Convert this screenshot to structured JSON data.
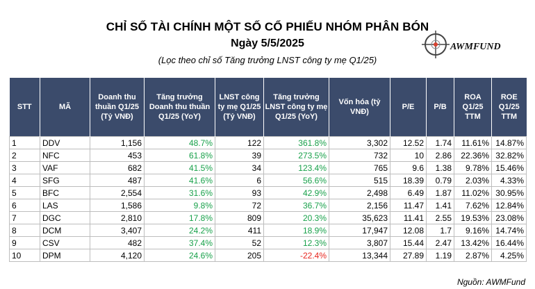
{
  "title": "CHỈ SỐ TÀI CHÍNH MỘT SỐ CỔ PHIẾU NHÓM PHÂN BÓN",
  "date": "Ngày 5/5/2025",
  "note": "(Lọc theo chỉ số Tăng trưởng LNST công ty mẹ Q1/25)",
  "logo": {
    "text": "AWMFUND",
    "icon": "crosshair-icon",
    "accent": "#d8412f"
  },
  "colors": {
    "header_bg": "#3b4b6b",
    "positive": "#18a14a",
    "negative": "#e8261f"
  },
  "table": {
    "headers": [
      "STT",
      "MÃ",
      "Doanh thu thuần Q1/25 (Tỷ VNĐ)",
      "Tăng trưởng Doanh thu thuần Q1/25 (YoY)",
      "LNST công ty mẹ Q1/25 (Tỷ VNĐ)",
      "Tăng trưởng LNST công ty mẹ Q1/25 (YoY)",
      "Vốn hóa (tỷ VNĐ)",
      "P/E",
      "P/B",
      "ROA Q1/25 TTM",
      "ROE Q1/25 TTM"
    ],
    "rows": [
      [
        "1",
        "DDV",
        "1,156",
        "48.7%",
        "122",
        "361.8%",
        "3,302",
        "12.52",
        "1.74",
        "11.61%",
        "14.87%"
      ],
      [
        "2",
        "NFC",
        "453",
        "61.8%",
        "39",
        "273.5%",
        "732",
        "10",
        "2.86",
        "22.36%",
        "32.82%"
      ],
      [
        "3",
        "VAF",
        "682",
        "41.5%",
        "34",
        "123.4%",
        "765",
        "9.6",
        "1.38",
        "9.78%",
        "15.46%"
      ],
      [
        "4",
        "SFG",
        "487",
        "41.6%",
        "6",
        "56.6%",
        "515",
        "18.39",
        "0.79",
        "2.03%",
        "4.33%"
      ],
      [
        "5",
        "BFC",
        "2,554",
        "31.6%",
        "93",
        "42.9%",
        "2,498",
        "6.49",
        "1.87",
        "11.02%",
        "30.95%"
      ],
      [
        "6",
        "LAS",
        "1,586",
        "9.8%",
        "72",
        "36.7%",
        "2,156",
        "11.47",
        "1.41",
        "7.62%",
        "12.84%"
      ],
      [
        "7",
        "DGC",
        "2,810",
        "17.8%",
        "809",
        "20.3%",
        "35,623",
        "11.41",
        "2.55",
        "19.53%",
        "23.08%"
      ],
      [
        "8",
        "DCM",
        "3,407",
        "24.2%",
        "411",
        "18.9%",
        "17,947",
        "12.08",
        "1.7",
        "9.16%",
        "14.74%"
      ],
      [
        "9",
        "CSV",
        "482",
        "37.4%",
        "52",
        "12.3%",
        "3,807",
        "15.44",
        "2.47",
        "13.42%",
        "16.44%"
      ],
      [
        "10",
        "DPM",
        "4,120",
        "24.6%",
        "205",
        "-22.4%",
        "13,344",
        "27.89",
        "1.19",
        "2.87%",
        "4.25%"
      ]
    ]
  },
  "source": "Nguồn: AWMFund"
}
